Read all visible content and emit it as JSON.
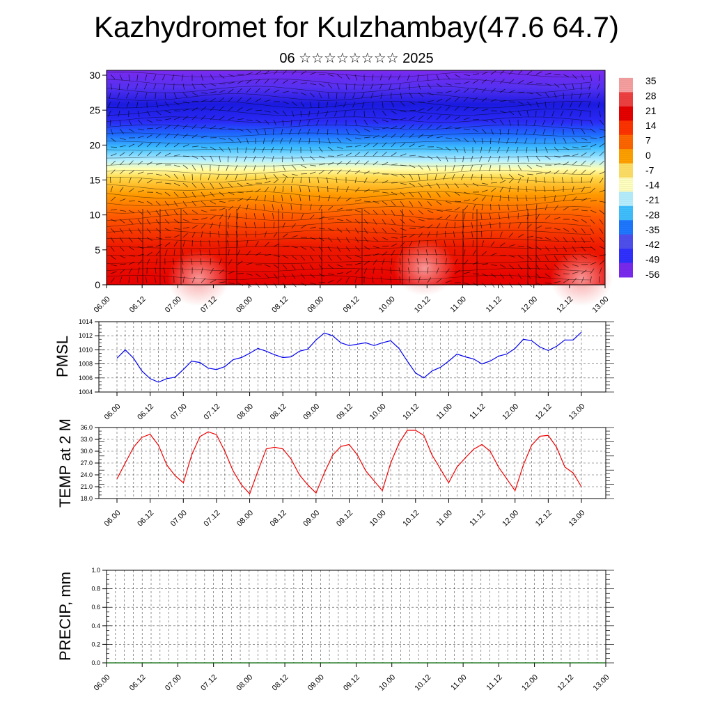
{
  "header": {
    "title": "Kazhydromet for Kulzhambay(47.6 64.7)",
    "subtitle": "06 ☆☆☆☆☆☆☆☆ 2025"
  },
  "colors": {
    "pmsl_line": "#0000ee",
    "temp_line": "#ee0000",
    "precip_line": "#006400",
    "grid": "#000000"
  },
  "chart_data": [
    {
      "type": "heatmap",
      "name": "cross-section",
      "x_ticks": [
        "06.00",
        "06.12",
        "07.00",
        "07.12",
        "08.00",
        "08.12",
        "09.00",
        "09.12",
        "10.00",
        "10.12",
        "11.00",
        "11.12",
        "12.00",
        "12.12",
        "13.00"
      ],
      "y_ticks": [
        "0",
        "5",
        "10",
        "15",
        "20",
        "25",
        "30"
      ],
      "ylim": [
        0,
        30.7
      ],
      "colorbar": {
        "labels": [
          "35",
          "28",
          "21",
          "14",
          "7",
          "0",
          "-7",
          "-14",
          "-21",
          "-28",
          "-35",
          "-42",
          "-49",
          "-56"
        ],
        "colors": [
          "#f8a0a0",
          "#f04040",
          "#e60000",
          "#ff3300",
          "#ff6600",
          "#ffa000",
          "#ffe066",
          "#ffffc0",
          "#b8f0ff",
          "#40c0ff",
          "#1e78ff",
          "#5050f0",
          "#3030ff",
          "#7a2af0"
        ]
      }
    },
    {
      "type": "line",
      "name": "PMSL",
      "ylabel": "PMSL",
      "ylim": [
        1004,
        1014
      ],
      "y_ticks": [
        "1004",
        "1006",
        "1008",
        "1010",
        "1012",
        "1014"
      ],
      "x_ticks": [
        "06.00",
        "06.12",
        "07.00",
        "07.12",
        "08.00",
        "08.12",
        "09.00",
        "09.12",
        "10.00",
        "10.12",
        "11.00",
        "11.12",
        "12.00",
        "12.12",
        "13.00"
      ],
      "values": [
        1008.8,
        1010.0,
        1008.8,
        1007.0,
        1005.9,
        1005.4,
        1005.9,
        1006.1,
        1007.2,
        1008.4,
        1008.2,
        1007.4,
        1007.2,
        1007.6,
        1008.6,
        1008.9,
        1009.5,
        1010.2,
        1009.8,
        1009.3,
        1008.9,
        1009.0,
        1009.8,
        1010.1,
        1011.4,
        1012.4,
        1012.0,
        1011.0,
        1010.6,
        1010.8,
        1011.0,
        1010.6,
        1011.0,
        1011.3,
        1010.2,
        1008.4,
        1006.7,
        1006.0,
        1007.0,
        1007.5,
        1008.4,
        1009.4,
        1009.0,
        1008.7,
        1008.0,
        1008.4,
        1009.1,
        1009.4,
        1010.2,
        1011.5,
        1011.3,
        1010.4,
        1009.9,
        1010.5,
        1011.4,
        1011.4,
        1012.5
      ]
    },
    {
      "type": "line",
      "name": "TEMP at 2 M",
      "ylabel": "TEMP at 2 M",
      "ylim": [
        18,
        36
      ],
      "y_ticks": [
        "18.0",
        "21.0",
        "24.0",
        "27.0",
        "30.0",
        "33.0",
        "36.0"
      ],
      "x_ticks": [
        "06.00",
        "06.12",
        "07.00",
        "07.12",
        "08.00",
        "08.12",
        "09.00",
        "09.12",
        "10.00",
        "10.12",
        "11.00",
        "11.12",
        "12.00",
        "12.12",
        "13.00"
      ],
      "values": [
        23.0,
        27.0,
        31.0,
        33.5,
        34.3,
        31.5,
        26.5,
        23.8,
        22.0,
        29.0,
        33.7,
        34.9,
        34.2,
        30.0,
        25.0,
        21.5,
        19.2,
        25.0,
        30.6,
        31.0,
        30.6,
        28.0,
        24.0,
        21.5,
        19.4,
        24.5,
        29.0,
        31.2,
        31.7,
        29.0,
        25.0,
        22.5,
        20.0,
        27.0,
        32.0,
        35.3,
        35.3,
        34.0,
        29.0,
        25.5,
        22.0,
        26.0,
        28.3,
        30.5,
        31.7,
        30.0,
        26.0,
        23.0,
        20.0,
        26.5,
        31.5,
        33.8,
        34.0,
        31.0,
        26.0,
        24.5,
        21.0
      ]
    },
    {
      "type": "line",
      "name": "PRECIP, mm",
      "ylabel": "PRECIP, mm",
      "ylim": [
        0,
        1
      ],
      "y_ticks": [
        "0.0",
        "0.2",
        "0.4",
        "0.6",
        "0.8",
        "1.0"
      ],
      "x_ticks": [
        "06.00",
        "06.12",
        "07.00",
        "07.12",
        "08.00",
        "08.12",
        "09.00",
        "09.12",
        "10.00",
        "10.12",
        "11.00",
        "11.12",
        "12.00",
        "12.12",
        "13.00"
      ],
      "values": [
        0,
        0,
        0,
        0,
        0,
        0,
        0,
        0,
        0,
        0,
        0,
        0,
        0,
        0,
        0,
        0,
        0,
        0,
        0,
        0,
        0,
        0,
        0,
        0,
        0,
        0,
        0,
        0,
        0,
        0,
        0,
        0,
        0,
        0,
        0,
        0,
        0,
        0,
        0,
        0,
        0,
        0,
        0,
        0,
        0,
        0,
        0,
        0,
        0,
        0,
        0,
        0,
        0,
        0,
        0,
        0,
        0
      ]
    }
  ]
}
